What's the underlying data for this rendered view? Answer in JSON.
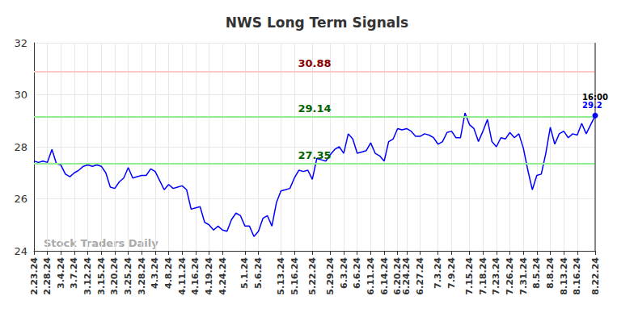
{
  "chart_data": {
    "type": "line",
    "title": "NWS Long Term Signals",
    "categories": [
      "2.23.24",
      null,
      null,
      "2.28.24",
      null,
      null,
      "3.4.24",
      null,
      null,
      "3.7.24",
      null,
      null,
      "3.12.24",
      null,
      null,
      "3.15.24",
      null,
      null,
      "3.20.24",
      null,
      null,
      "3.25.24",
      null,
      null,
      "3.28.24",
      null,
      null,
      "4.3.24",
      null,
      null,
      "4.8.24",
      null,
      null,
      "4.11.24",
      null,
      null,
      "4.16.24",
      null,
      null,
      "4.19.24",
      null,
      null,
      "4.24.24",
      null,
      null,
      null,
      null,
      "5.1.24",
      null,
      null,
      "5.6.24",
      null,
      null,
      null,
      null,
      "5.13.24",
      null,
      null,
      "5.16.24",
      null,
      null,
      null,
      "5.22.24",
      null,
      null,
      null,
      "5.29.24",
      null,
      null,
      "6.3.24",
      null,
      null,
      "6.6.24",
      null,
      null,
      "6.11.24",
      null,
      null,
      "6.14.24",
      null,
      null,
      "6.20.24",
      null,
      "6.24.24",
      null,
      null,
      "6.27.24",
      null,
      null,
      null,
      "7.3.24",
      null,
      null,
      "7.9.24",
      null,
      null,
      null,
      "7.15.24",
      null,
      null,
      "7.18.24",
      null,
      null,
      "7.23.24",
      null,
      null,
      "7.26.24",
      null,
      null,
      "7.31.24",
      null,
      null,
      "8.5.24",
      null,
      null,
      "8.8.24",
      null,
      null,
      "8.13.24",
      null,
      null,
      "8.16.24",
      null,
      null,
      null,
      "8.22.24"
    ],
    "values": [
      27.45,
      27.4,
      27.45,
      27.4,
      27.9,
      27.35,
      27.3,
      26.95,
      26.85,
      27.0,
      27.1,
      27.25,
      27.3,
      27.25,
      27.3,
      27.25,
      27.0,
      26.45,
      26.4,
      26.65,
      26.8,
      27.2,
      26.8,
      26.85,
      26.9,
      26.9,
      27.15,
      27.05,
      26.7,
      26.35,
      26.55,
      26.4,
      26.45,
      26.5,
      26.35,
      25.6,
      25.65,
      25.7,
      25.1,
      25.0,
      24.8,
      24.95,
      24.8,
      24.75,
      25.2,
      25.45,
      25.35,
      24.95,
      24.95,
      24.55,
      24.75,
      25.25,
      25.35,
      24.95,
      25.85,
      26.3,
      26.35,
      26.4,
      26.8,
      27.1,
      27.05,
      27.1,
      26.75,
      27.55,
      27.5,
      27.45,
      27.7,
      27.9,
      28.0,
      27.75,
      28.5,
      28.3,
      27.75,
      27.8,
      27.85,
      28.15,
      27.75,
      27.65,
      27.45,
      28.2,
      28.3,
      28.7,
      28.65,
      28.7,
      28.6,
      28.4,
      28.4,
      28.5,
      28.45,
      28.35,
      28.1,
      28.2,
      28.55,
      28.6,
      28.35,
      28.35,
      29.3,
      28.85,
      28.7,
      28.2,
      28.6,
      29.05,
      28.2,
      28.0,
      28.35,
      28.3,
      28.55,
      28.35,
      28.5,
      27.95,
      27.1,
      26.35,
      26.9,
      26.95,
      27.75,
      28.75,
      28.1,
      28.5,
      28.6,
      28.35,
      28.5,
      28.45,
      28.9,
      28.5,
      28.85,
      29.2
    ],
    "color": "#0000ff",
    "ylim": [
      24,
      32
    ],
    "yticks": [
      24,
      26,
      28,
      30,
      32
    ],
    "grid": true,
    "annotations": [
      {
        "value": 30.88,
        "color": "#ffc8c8",
        "label_color": "#8b0000"
      },
      {
        "value": 29.14,
        "color": "#90ee90",
        "label_color": "#006400"
      },
      {
        "value": 27.35,
        "color": "#90ee90",
        "label_color": "#006400"
      }
    ],
    "end_label": "16:00",
    "watermark": "Stock Traders Daily"
  }
}
